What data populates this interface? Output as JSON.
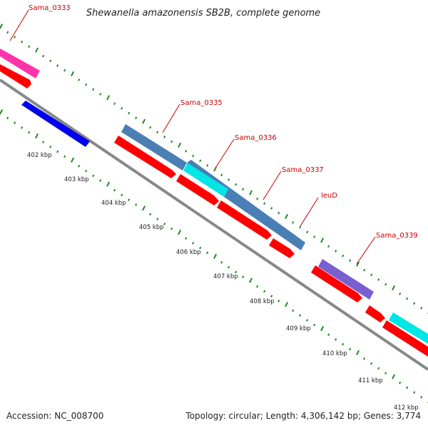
{
  "title": "Shewanella amazonensis SB2B, complete genome",
  "footer": {
    "accession": "Accession: NC_008700",
    "summary": "Topology: circular; Length: 4,306,142 bp; Genes: 3,774"
  },
  "colors": {
    "backbone": "#888888",
    "tick": "#1f8a1f",
    "cds_forward": "#ff0000",
    "cds_reverse": "#0000ee",
    "steelblue": "#4a7fb5",
    "cyan": "#00e5e5",
    "magenta": "#ff33aa",
    "purple": "#7a5fd0",
    "label": "#cc0000"
  },
  "gene_labels": [
    "Sama_0333",
    "Sama_0335",
    "Sama_0336",
    "Sama_0337",
    "leuD",
    "Sama_0339"
  ],
  "kbp_labels": [
    "402 kbp",
    "403 kbp",
    "404 kbp",
    "405 kbp",
    "406 kbp",
    "407 kbp",
    "408 kbp",
    "409 kbp",
    "410 kbp",
    "411 kbp",
    "412 kbp"
  ]
}
